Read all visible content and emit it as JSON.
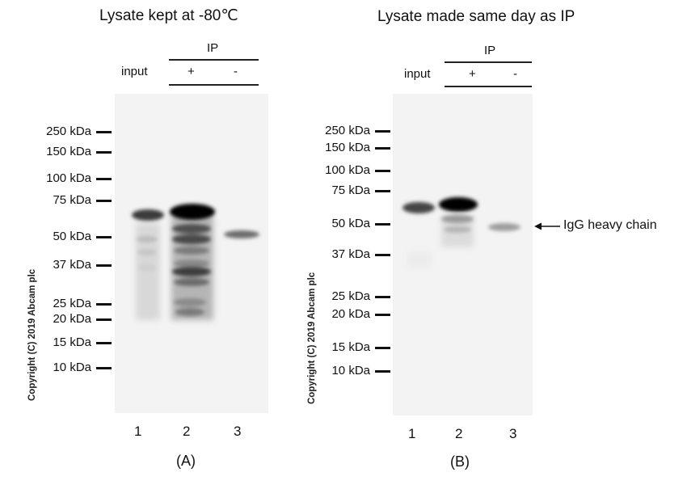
{
  "panel_a": {
    "title": "Lysate kept at -80℃",
    "ip_label": "IP",
    "input_label": "input",
    "plus_label": "+",
    "minus_label": "-",
    "markers": [
      "250 kDa",
      "150 kDa",
      "100 kDa",
      "75 kDa",
      "50 kDa",
      "37 kDa",
      "25 kDa",
      "20 kDa",
      "15 kDa",
      "10 kDa"
    ],
    "lanes": [
      "1",
      "2",
      "3"
    ],
    "caption": "(A)",
    "copyright": "Copyright (C) 2019 Abcam plc"
  },
  "panel_b": {
    "title": "Lysate made same day as IP",
    "ip_label": "IP",
    "input_label": "input",
    "plus_label": "+",
    "minus_label": "-",
    "markers": [
      "250 kDa",
      "150 kDa",
      "100 kDa",
      "75 kDa",
      "50 kDa",
      "37 kDa",
      "25 kDa",
      "20 kDa",
      "15 kDa",
      "10 kDa"
    ],
    "lanes": [
      "1",
      "2",
      "3"
    ],
    "caption": "(B)",
    "copyright": "Copyright (C) 2019 Abcam plc",
    "annotation": "IgG heavy chain"
  }
}
